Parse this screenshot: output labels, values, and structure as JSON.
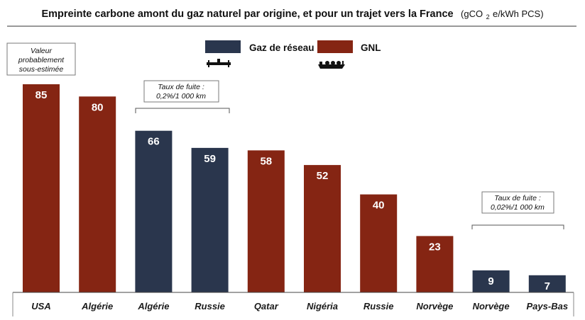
{
  "title": {
    "main": "Empreinte carbone amont du gaz naturel par origine, et pour un trajet vers la France",
    "unit_prefix": "(gCO",
    "unit_sub": "2",
    "unit_suffix": "e/kWh PCS)"
  },
  "legend": [
    {
      "label": "Gaz de réseau",
      "color": "#2a364d",
      "icon": "pipeline-icon"
    },
    {
      "label": "GNL",
      "color": "#852513",
      "icon": "lng-tanker-ship-icon"
    }
  ],
  "annotations": {
    "underestimated": [
      "Valeur",
      "probablement",
      "sous-estimée"
    ],
    "leak_high": [
      "Taux de fuite :",
      "0,2%/1 000 km"
    ],
    "leak_low": [
      "Taux de fuite :",
      "0,02%/1 000 km"
    ]
  },
  "colors": {
    "gaz_de_reseau": "#2a364d",
    "gnl": "#852513"
  },
  "chart_data": {
    "type": "bar",
    "title": "Empreinte carbone amont du gaz naturel par origine, et pour un trajet vers la France (gCO2e/kWh PCS)",
    "categories": [
      "USA",
      "Algérie",
      "Algérie",
      "Russie",
      "Qatar",
      "Nigéria",
      "Russie",
      "Norvège",
      "Norvège",
      "Pays-Bas"
    ],
    "values": [
      85,
      80,
      66,
      59,
      58,
      52,
      40,
      23,
      9,
      7
    ],
    "bar_types": [
      "GNL",
      "GNL",
      "Gaz de réseau",
      "Gaz de réseau",
      "GNL",
      "GNL",
      "GNL",
      "GNL",
      "Gaz de réseau",
      "Gaz de réseau"
    ],
    "xlabel": "",
    "ylabel": "",
    "ylim": [
      0,
      85
    ],
    "grid": false,
    "legend_position": "top-center"
  }
}
